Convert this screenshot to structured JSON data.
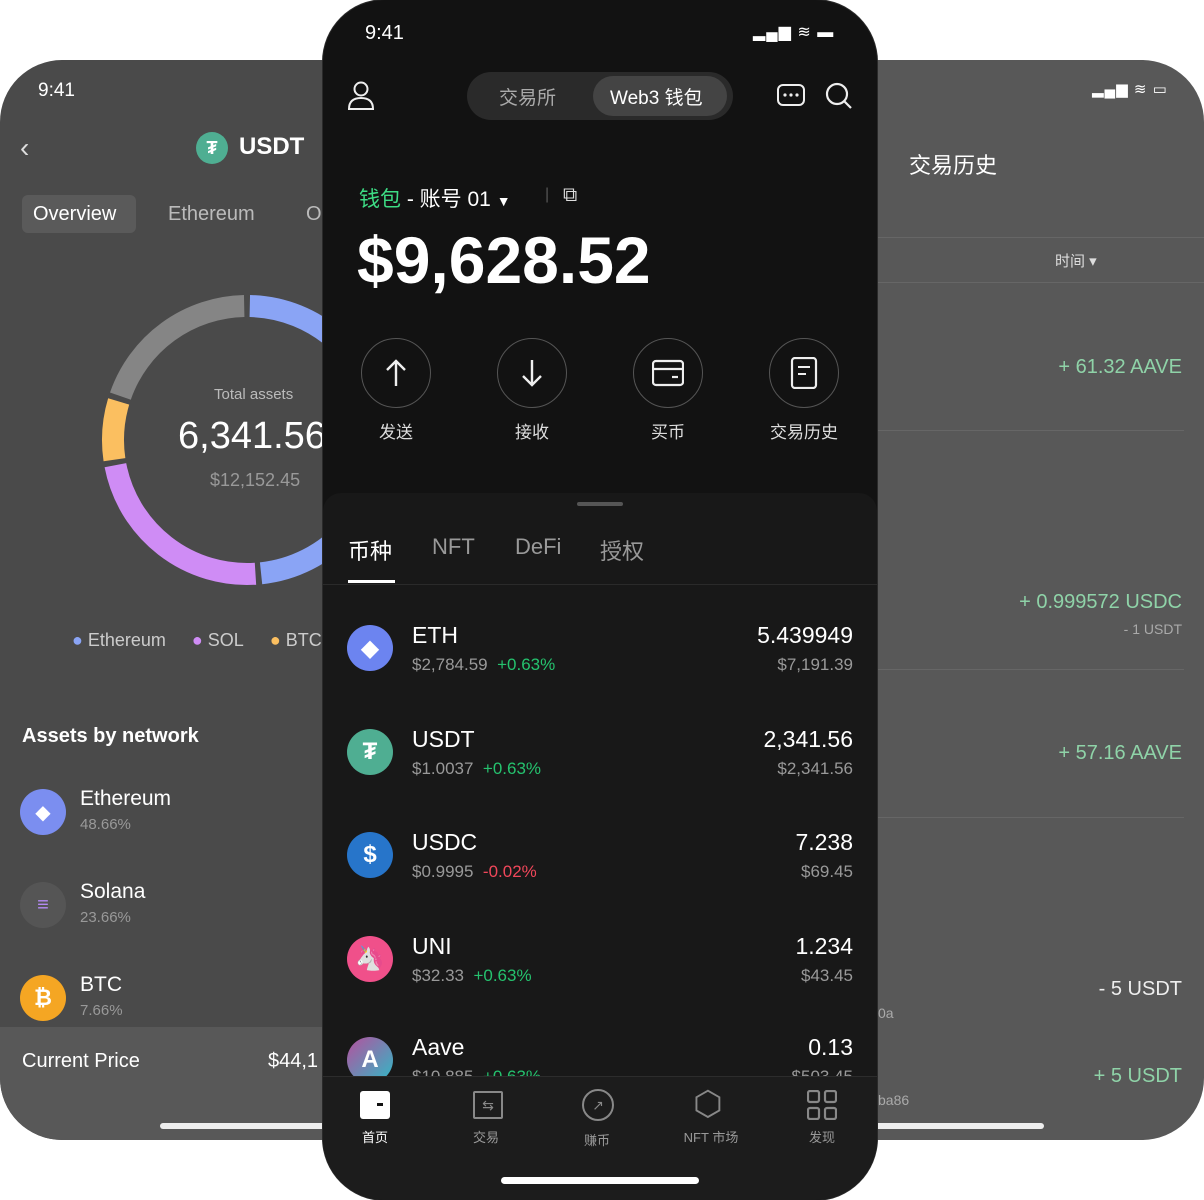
{
  "left": {
    "time": "9:41",
    "title": "USDT",
    "tabs": [
      "Overview",
      "Ethereum",
      "O"
    ],
    "total_label": "Total assets",
    "total_value": "6,341.56",
    "total_usd": "$12,152.45",
    "legend": [
      {
        "name": "Ethereum",
        "color": "#8aa4f5"
      },
      {
        "name": "SOL",
        "color": "#cf8cf5"
      },
      {
        "name": "BTC",
        "color": "#fbbf60"
      }
    ],
    "section_title": "Assets by network",
    "networks": [
      {
        "name": "Ethereum",
        "pct": "48.66%"
      },
      {
        "name": "Solana",
        "pct": "23.66%"
      },
      {
        "name": "BTC",
        "pct": "7.66%"
      }
    ],
    "current_price_label": "Current Price",
    "current_price": "$44,1"
  },
  "chart_data": {
    "type": "pie",
    "series": [
      {
        "name": "Ethereum",
        "value": 48.66,
        "color": "#8aa4f5"
      },
      {
        "name": "SOL",
        "value": 23.66,
        "color": "#cf8cf5"
      },
      {
        "name": "BTC",
        "value": 7.66,
        "color": "#fbbf60"
      },
      {
        "value": 20.02,
        "color": "#858585"
      }
    ]
  },
  "center": {
    "time": "9:41",
    "tabs": [
      "交易所",
      "Web3 钱包"
    ],
    "wallet_label": "钱包",
    "account": "- 账号 01",
    "balance": "$9,628.52",
    "actions": [
      "发送",
      "接收",
      "买币",
      "交易历史"
    ],
    "asset_tabs": [
      "币种",
      "NFT",
      "DeFi",
      "授权"
    ],
    "assets": [
      {
        "symbol": "ETH",
        "price": "$2,784.59",
        "change": "+0.63%",
        "up": true,
        "amount": "5.439949",
        "value": "$7,191.39"
      },
      {
        "symbol": "USDT",
        "price": "$1.0037",
        "change": "+0.63%",
        "up": true,
        "amount": "2,341.56",
        "value": "$2,341.56"
      },
      {
        "symbol": "USDC",
        "price": "$0.9995",
        "change": "-0.02%",
        "up": false,
        "amount": "7.238",
        "value": "$69.45"
      },
      {
        "symbol": "UNI",
        "price": "$32.33",
        "change": "+0.63%",
        "up": true,
        "amount": "1.234",
        "value": "$43.45"
      },
      {
        "symbol": "Aave",
        "price": "$10.885",
        "change": "+0.63%",
        "up": true,
        "amount": "0.13",
        "value": "$503.45"
      }
    ],
    "nav": [
      "首页",
      "交易",
      "赚币",
      "NFT 市场",
      "发现"
    ]
  },
  "right": {
    "title": "交易历史",
    "filter_time": "时间",
    "items": [
      {
        "amount": "+ 61.32 AAVE"
      },
      {
        "amount": "+ 0.999572 USDC",
        "sub": "- 1 USDT"
      },
      {
        "amount": "+ 57.16 AAVE"
      },
      {
        "amount": "- 5 USDT",
        "addr": "0a"
      },
      {
        "amount": "+ 5 USDT",
        "addr": "ba86"
      }
    ]
  }
}
